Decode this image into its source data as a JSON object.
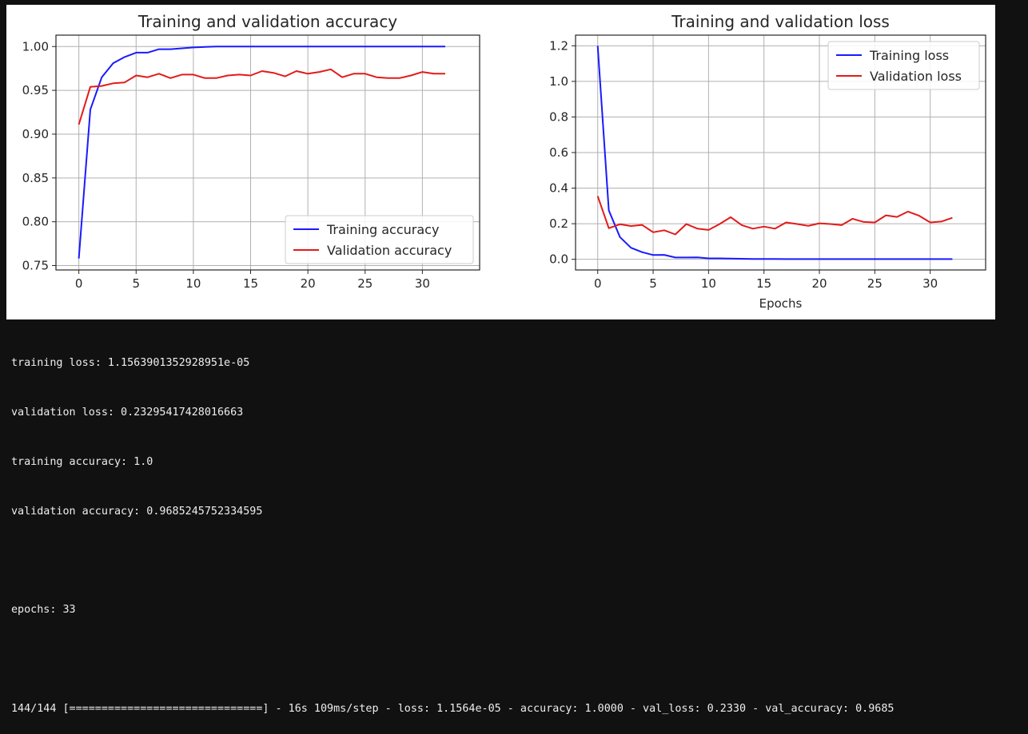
{
  "chart_data": [
    {
      "type": "line",
      "title": "Training and validation accuracy",
      "xlabel": "",
      "ylabel": "",
      "xlim": [
        -2,
        35
      ],
      "ylim": [
        0.745,
        1.013
      ],
      "xticks": [
        0,
        5,
        10,
        15,
        20,
        25,
        30
      ],
      "yticks": [
        0.75,
        0.8,
        0.85,
        0.9,
        0.95,
        1.0
      ],
      "ytick_labels": [
        "0.75",
        "0.80",
        "0.85",
        "0.90",
        "0.95",
        "1.00"
      ],
      "grid": true,
      "legend_position": "lower-right",
      "series": [
        {
          "name": "Training accuracy",
          "color": "#1a1aff",
          "x": [
            0,
            1,
            2,
            3,
            4,
            5,
            6,
            7,
            8,
            9,
            10,
            11,
            12,
            13,
            14,
            15,
            16,
            17,
            18,
            19,
            20,
            21,
            22,
            23,
            24,
            25,
            26,
            27,
            28,
            29,
            30,
            31,
            32
          ],
          "values": [
            0.758,
            0.928,
            0.965,
            0.981,
            0.988,
            0.993,
            0.993,
            0.997,
            0.997,
            0.998,
            0.999,
            0.9995,
            1.0,
            1.0,
            1.0,
            1.0,
            1.0,
            1.0,
            1.0,
            1.0,
            1.0,
            1.0,
            1.0,
            1.0,
            1.0,
            1.0,
            1.0,
            1.0,
            1.0,
            1.0,
            1.0,
            1.0,
            1.0
          ]
        },
        {
          "name": "Validation accuracy",
          "color": "#e41a1a",
          "x": [
            0,
            1,
            2,
            3,
            4,
            5,
            6,
            7,
            8,
            9,
            10,
            11,
            12,
            13,
            14,
            15,
            16,
            17,
            18,
            19,
            20,
            21,
            22,
            23,
            24,
            25,
            26,
            27,
            28,
            29,
            30,
            31,
            32
          ],
          "values": [
            0.911,
            0.954,
            0.955,
            0.958,
            0.959,
            0.967,
            0.965,
            0.969,
            0.964,
            0.968,
            0.968,
            0.964,
            0.964,
            0.967,
            0.968,
            0.967,
            0.972,
            0.97,
            0.966,
            0.972,
            0.969,
            0.971,
            0.974,
            0.965,
            0.969,
            0.969,
            0.965,
            0.964,
            0.964,
            0.967,
            0.971,
            0.969,
            0.969
          ]
        }
      ]
    },
    {
      "type": "line",
      "title": "Training and validation loss",
      "xlabel": "Epochs",
      "ylabel": "",
      "xlim": [
        -2,
        35
      ],
      "ylim": [
        -0.06,
        1.26
      ],
      "xticks": [
        0,
        5,
        10,
        15,
        20,
        25,
        30
      ],
      "yticks": [
        0.0,
        0.2,
        0.4,
        0.6,
        0.8,
        1.0,
        1.2
      ],
      "ytick_labels": [
        "0.0",
        "0.2",
        "0.4",
        "0.6",
        "0.8",
        "1.0",
        "1.2"
      ],
      "grid": true,
      "legend_position": "upper-right",
      "series": [
        {
          "name": "Training loss",
          "color": "#1a1aff",
          "x": [
            0,
            1,
            2,
            3,
            4,
            5,
            6,
            7,
            8,
            9,
            10,
            11,
            12,
            13,
            14,
            15,
            16,
            17,
            18,
            19,
            20,
            21,
            22,
            23,
            24,
            25,
            26,
            27,
            28,
            29,
            30,
            31,
            32
          ],
          "values": [
            1.2,
            0.275,
            0.125,
            0.065,
            0.04,
            0.024,
            0.025,
            0.01,
            0.01,
            0.011,
            0.005,
            0.005,
            0.004,
            0.003,
            0.002,
            0.002,
            0.002,
            0.001,
            0.001,
            0.001,
            0.001,
            0.001,
            0.001,
            0.001,
            0.001,
            0.001,
            0.001,
            0.001,
            0.001,
            0.001,
            0.001,
            0.001,
            0.001
          ]
        },
        {
          "name": "Validation loss",
          "color": "#e41a1a",
          "x": [
            0,
            1,
            2,
            3,
            4,
            5,
            6,
            7,
            8,
            9,
            10,
            11,
            12,
            13,
            14,
            15,
            16,
            17,
            18,
            19,
            20,
            21,
            22,
            23,
            24,
            25,
            26,
            27,
            28,
            29,
            30,
            31,
            32
          ],
          "values": [
            0.355,
            0.175,
            0.197,
            0.187,
            0.193,
            0.152,
            0.163,
            0.14,
            0.198,
            0.172,
            0.165,
            0.198,
            0.237,
            0.192,
            0.172,
            0.184,
            0.172,
            0.207,
            0.198,
            0.188,
            0.202,
            0.198,
            0.192,
            0.228,
            0.21,
            0.207,
            0.247,
            0.238,
            0.268,
            0.245,
            0.207,
            0.212,
            0.233
          ]
        }
      ]
    }
  ],
  "console": {
    "line1": "training loss: 1.1563901352928951e-05",
    "line2": "validation loss: 0.23295417428016663",
    "line3": "training accuracy: 1.0",
    "line4": "validation accuracy: 0.9685245752334595",
    "line5": "epochs: 33",
    "line6": "144/144 [==============================] - 16s 109ms/step - loss: 1.1564e-05 - accuracy: 1.0000 - val_loss: 0.2330 - val_accuracy: 0.9685"
  }
}
